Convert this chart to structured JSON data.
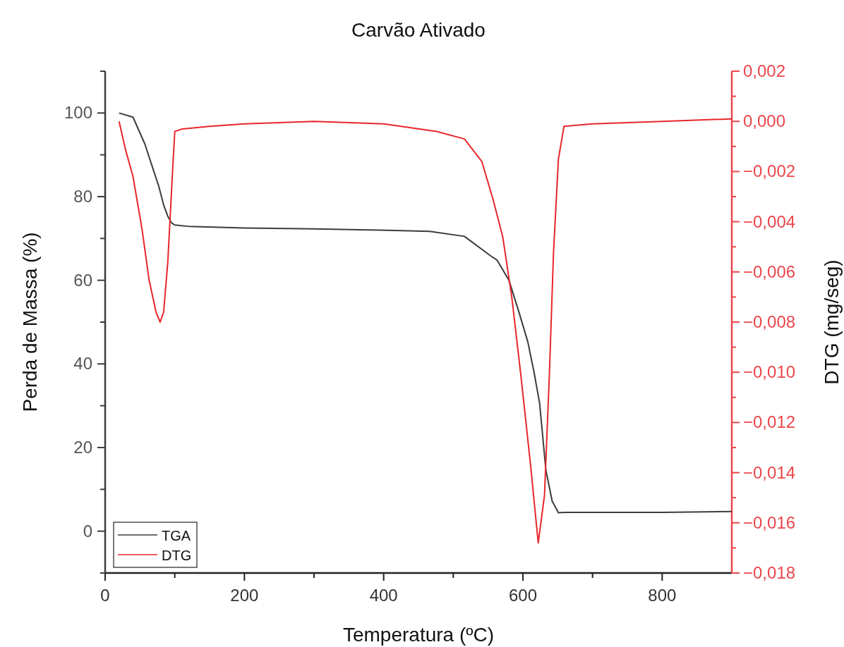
{
  "chart_data": {
    "type": "line",
    "title": "Carvão Ativado",
    "xlabel": "Temperatura (ºC)",
    "ylabel": "Perda de Massa (%)",
    "y2label": "DTG (mg/seg)",
    "xlim": [
      0,
      900
    ],
    "xticks": [
      0,
      {
        "value": 100,
        "label": null
      },
      200,
      {
        "value": 300,
        "label": null
      },
      400,
      {
        "value": 500,
        "label": null
      },
      600,
      {
        "value": 700,
        "label": null
      },
      800
    ],
    "ylim": [
      -10,
      110
    ],
    "yticks": [
      {
        "value": -10,
        "label": null
      },
      0,
      {
        "value": 10,
        "label": null
      },
      20,
      {
        "value": 30,
        "label": null
      },
      40,
      {
        "value": 50,
        "label": null
      },
      60,
      {
        "value": 70,
        "label": null
      },
      80,
      {
        "value": 90,
        "label": null
      },
      100,
      {
        "value": 110,
        "label": null
      }
    ],
    "y2lim": [
      -0.018,
      0.002
    ],
    "y2ticks": [
      {
        "value": 0.002,
        "label": "0,002"
      },
      {
        "value": 0,
        "label": "0,000"
      },
      {
        "value": -0.002,
        "label": "−0,002"
      },
      {
        "value": -0.004,
        "label": "−0,004"
      },
      {
        "value": -0.006,
        "label": "−0,006"
      },
      {
        "value": -0.008,
        "label": "−0,008"
      },
      {
        "value": -0.01,
        "label": "−0,010"
      },
      {
        "value": -0.012,
        "label": "−0,012"
      },
      {
        "value": -0.014,
        "label": "−0,014"
      },
      {
        "value": -0.016,
        "label": "−0,016"
      },
      {
        "value": -0.018,
        "label": "−0,018"
      }
    ],
    "legend": "bottom left",
    "grid": false,
    "line_style": "solid",
    "marker": "none",
    "series": [
      {
        "name": "TGA",
        "color": "#3c3c3c",
        "x": [
          20,
          40,
          57,
          70,
          77,
          84,
          90,
          95,
          100,
          120,
          200,
          300,
          395,
          466,
          516,
          554,
          563,
          580,
          595,
          607,
          616,
          624,
          633,
          642,
          651,
          660,
          700,
          800,
          900
        ],
        "values": [
          100,
          99,
          92.6,
          86,
          82.5,
          78,
          75.3,
          73.8,
          73.2,
          72.9,
          72.5,
          72.3,
          72,
          71.7,
          70.5,
          65.8,
          64.8,
          60,
          52,
          45.3,
          38,
          30.6,
          14.6,
          7.2,
          4.4,
          4.5,
          4.5,
          4.5,
          4.7
        ]
      },
      {
        "name": "DTG",
        "color": "#e8262b",
        "axis": "y2",
        "x": [
          20,
          29,
          40,
          53,
          63,
          73,
          79,
          84,
          90,
          97,
          100,
          111,
          150,
          200,
          300,
          400,
          476,
          516,
          541,
          557,
          571,
          584,
          597,
          611,
          622,
          631,
          638,
          644,
          651,
          659,
          700,
          800,
          900
        ],
        "values": [
          0,
          -0.0011,
          -0.0022,
          -0.0043,
          -0.0063,
          -0.0076,
          -0.008,
          -0.0076,
          -0.0056,
          -0.0019,
          -0.0004,
          -0.0003,
          -0.0002,
          -0.0001,
          0,
          -0.0001,
          -0.0004,
          -0.0007,
          -0.0016,
          -0.0031,
          -0.0046,
          -0.007,
          -0.0101,
          -0.0137,
          -0.0168,
          -0.0149,
          -0.0101,
          -0.0052,
          -0.0015,
          -0.0002,
          -0.0001,
          0,
          0.0001
        ]
      }
    ]
  }
}
